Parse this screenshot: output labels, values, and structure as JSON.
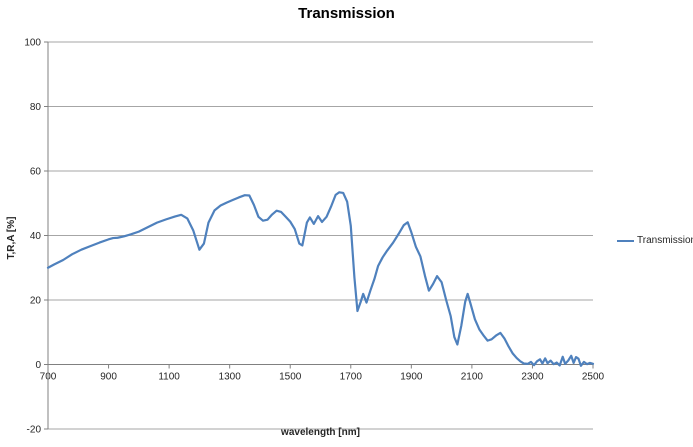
{
  "title": "Transmission",
  "axes": {
    "x_label": "wavelength [nm]",
    "y_label": "T,R,A [%]"
  },
  "legend": {
    "label": "Transmission"
  },
  "colors": {
    "series_line": "#4F81BD",
    "gridline": "#A6A6A6",
    "axis_line": "#808080",
    "tick_text": "#262626",
    "background": "#FFFFFF"
  },
  "chart_data": {
    "type": "line",
    "title": "Transmission",
    "xlabel": "wavelength [nm]",
    "ylabel": "T,R,A [%]",
    "xlim": [
      700,
      2500
    ],
    "ylim": [
      -20,
      100
    ],
    "x_ticks": [
      700,
      900,
      1100,
      1300,
      1500,
      1700,
      1900,
      2100,
      2300,
      2500
    ],
    "y_ticks": [
      100,
      80,
      60,
      40,
      20,
      0,
      -20
    ],
    "grid": "horizontal",
    "legend_position": "right",
    "series": [
      {
        "name": "Transmission",
        "color": "#4F81BD",
        "points": [
          [
            700,
            30.0
          ],
          [
            720,
            31.0
          ],
          [
            750,
            32.4
          ],
          [
            780,
            34.2
          ],
          [
            810,
            35.6
          ],
          [
            840,
            36.7
          ],
          [
            870,
            37.8
          ],
          [
            900,
            38.8
          ],
          [
            915,
            39.2
          ],
          [
            930,
            39.3
          ],
          [
            950,
            39.7
          ],
          [
            975,
            40.4
          ],
          [
            1000,
            41.2
          ],
          [
            1030,
            42.6
          ],
          [
            1060,
            44.0
          ],
          [
            1090,
            45.0
          ],
          [
            1120,
            45.9
          ],
          [
            1140,
            46.4
          ],
          [
            1160,
            45.3
          ],
          [
            1180,
            41.5
          ],
          [
            1200,
            35.6
          ],
          [
            1215,
            37.5
          ],
          [
            1230,
            44.0
          ],
          [
            1250,
            47.8
          ],
          [
            1270,
            49.3
          ],
          [
            1290,
            50.2
          ],
          [
            1310,
            51.0
          ],
          [
            1330,
            51.8
          ],
          [
            1350,
            52.5
          ],
          [
            1365,
            52.4
          ],
          [
            1380,
            49.5
          ],
          [
            1395,
            45.8
          ],
          [
            1410,
            44.6
          ],
          [
            1425,
            44.9
          ],
          [
            1440,
            46.5
          ],
          [
            1455,
            47.7
          ],
          [
            1470,
            47.3
          ],
          [
            1485,
            45.8
          ],
          [
            1500,
            44.3
          ],
          [
            1515,
            42.0
          ],
          [
            1530,
            37.5
          ],
          [
            1540,
            36.9
          ],
          [
            1555,
            44.0
          ],
          [
            1565,
            45.6
          ],
          [
            1578,
            43.6
          ],
          [
            1592,
            46.0
          ],
          [
            1605,
            44.2
          ],
          [
            1620,
            45.8
          ],
          [
            1635,
            49.0
          ],
          [
            1650,
            52.6
          ],
          [
            1662,
            53.4
          ],
          [
            1675,
            53.2
          ],
          [
            1688,
            50.5
          ],
          [
            1700,
            43.0
          ],
          [
            1712,
            27.0
          ],
          [
            1722,
            16.6
          ],
          [
            1733,
            19.5
          ],
          [
            1741,
            21.9
          ],
          [
            1752,
            19.2
          ],
          [
            1765,
            23.0
          ],
          [
            1778,
            26.5
          ],
          [
            1790,
            30.5
          ],
          [
            1805,
            33.2
          ],
          [
            1820,
            35.3
          ],
          [
            1840,
            37.8
          ],
          [
            1858,
            40.5
          ],
          [
            1875,
            43.2
          ],
          [
            1888,
            44.1
          ],
          [
            1900,
            41.0
          ],
          [
            1915,
            36.5
          ],
          [
            1930,
            33.5
          ],
          [
            1945,
            27.5
          ],
          [
            1958,
            22.9
          ],
          [
            1972,
            25.0
          ],
          [
            1985,
            27.4
          ],
          [
            2000,
            25.5
          ],
          [
            2015,
            20.0
          ],
          [
            2030,
            15.0
          ],
          [
            2042,
            8.5
          ],
          [
            2052,
            6.2
          ],
          [
            2065,
            12.0
          ],
          [
            2078,
            19.5
          ],
          [
            2086,
            21.9
          ],
          [
            2095,
            19.0
          ],
          [
            2110,
            14.0
          ],
          [
            2125,
            10.8
          ],
          [
            2140,
            8.8
          ],
          [
            2152,
            7.4
          ],
          [
            2165,
            7.8
          ],
          [
            2180,
            9.0
          ],
          [
            2194,
            9.8
          ],
          [
            2208,
            8.0
          ],
          [
            2220,
            5.8
          ],
          [
            2235,
            3.4
          ],
          [
            2248,
            2.0
          ],
          [
            2260,
            1.0
          ],
          [
            2272,
            0.3
          ],
          [
            2285,
            0.2
          ],
          [
            2295,
            0.8
          ],
          [
            2305,
            -0.2
          ],
          [
            2315,
            1.0
          ],
          [
            2325,
            1.6
          ],
          [
            2333,
            0.3
          ],
          [
            2342,
            1.9
          ],
          [
            2350,
            0.4
          ],
          [
            2360,
            1.2
          ],
          [
            2370,
            0.1
          ],
          [
            2380,
            0.6
          ],
          [
            2390,
            -0.3
          ],
          [
            2400,
            2.4
          ],
          [
            2408,
            0.2
          ],
          [
            2418,
            1.2
          ],
          [
            2428,
            2.7
          ],
          [
            2436,
            0.5
          ],
          [
            2444,
            2.3
          ],
          [
            2452,
            1.8
          ],
          [
            2460,
            -0.4
          ],
          [
            2470,
            0.8
          ],
          [
            2480,
            0.1
          ],
          [
            2490,
            0.5
          ],
          [
            2500,
            0.2
          ]
        ]
      }
    ]
  }
}
